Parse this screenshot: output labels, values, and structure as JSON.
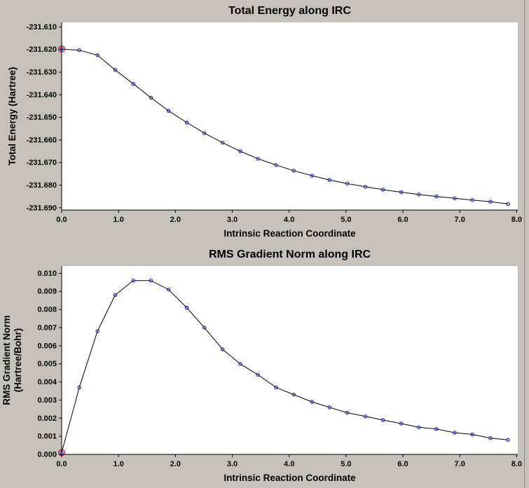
{
  "window": {
    "background": "#c6c2bb",
    "plot_background": "#ffffff"
  },
  "chart_data": [
    {
      "type": "line",
      "title": "Total Energy along IRC",
      "xlabel": "Intrinsic Reaction Coordinate",
      "ylabel_lines": [
        "Total Energy (Hartree)"
      ],
      "xlim": [
        0,
        8.02
      ],
      "ylim": [
        -231.691,
        -231.608
      ],
      "xticks": [
        0,
        1,
        2,
        3,
        4,
        5,
        6,
        7,
        8
      ],
      "xtick_labels": [
        "0.0",
        "1.0",
        "2.0",
        "3.0",
        "4.0",
        "5.0",
        "6.0",
        "7.0",
        "8.0"
      ],
      "yticks": [
        -231.61,
        -231.62,
        -231.63,
        -231.64,
        -231.65,
        -231.66,
        -231.67,
        -231.68,
        -231.69
      ],
      "ytick_labels": [
        "-231.610",
        "-231.620",
        "-231.630",
        "-231.640",
        "-231.650",
        "-231.660",
        "-231.670",
        "-231.680",
        "-231.690"
      ],
      "x": [
        0,
        0.31,
        0.63,
        0.94,
        1.26,
        1.57,
        1.88,
        2.2,
        2.51,
        2.83,
        3.14,
        3.45,
        3.77,
        4.08,
        4.4,
        4.71,
        5.02,
        5.34,
        5.65,
        5.97,
        6.28,
        6.59,
        6.91,
        7.22,
        7.54,
        7.85
      ],
      "y": [
        -231.6198,
        -231.6203,
        -231.6225,
        -231.629,
        -231.6352,
        -231.6413,
        -231.6471,
        -231.6523,
        -231.657,
        -231.6612,
        -231.665,
        -231.6683,
        -231.6711,
        -231.6736,
        -231.6758,
        -231.6777,
        -231.6793,
        -231.6807,
        -231.682,
        -231.6831,
        -231.6841,
        -231.685,
        -231.6858,
        -231.6866,
        -231.6873,
        -231.6883
      ],
      "line_color": "#000000",
      "marker_color": "#2222bb",
      "highlight_index": 0,
      "highlight_color": "#c02040",
      "grid": false,
      "legend": null
    },
    {
      "type": "line",
      "title": "RMS Gradient Norm along IRC",
      "xlabel": "Intrinsic Reaction Coordinate",
      "ylabel_lines": [
        "RMS Gradient Norm",
        "(Hartree/Bohr)"
      ],
      "xlim": [
        0,
        8.02
      ],
      "ylim": [
        0,
        0.0104
      ],
      "xticks": [
        0,
        1,
        2,
        3,
        4,
        5,
        6,
        7,
        8
      ],
      "xtick_labels": [
        "0.0",
        "1.0",
        "2.0",
        "3.0",
        "4.0",
        "5.0",
        "6.0",
        "7.0",
        "8.0"
      ],
      "yticks": [
        0.0,
        0.001,
        0.002,
        0.003,
        0.004,
        0.005,
        0.006,
        0.007,
        0.008,
        0.009,
        0.01
      ],
      "ytick_labels": [
        "0.000",
        "0.001",
        "0.002",
        "0.003",
        "0.004",
        "0.005",
        "0.006",
        "0.007",
        "0.008",
        "0.009",
        "0.010"
      ],
      "x": [
        0,
        0.31,
        0.63,
        0.94,
        1.26,
        1.57,
        1.88,
        2.2,
        2.51,
        2.83,
        3.14,
        3.45,
        3.77,
        4.08,
        4.4,
        4.71,
        5.02,
        5.34,
        5.65,
        5.97,
        6.28,
        6.59,
        6.91,
        7.22,
        7.54,
        7.85
      ],
      "y": [
        0.0001,
        0.0037,
        0.0068,
        0.0088,
        0.0096,
        0.0096,
        0.0091,
        0.0081,
        0.007,
        0.0058,
        0.005,
        0.0044,
        0.0037,
        0.0033,
        0.0029,
        0.0026,
        0.0023,
        0.0021,
        0.0019,
        0.0017,
        0.0015,
        0.0014,
        0.0012,
        0.0011,
        0.0009,
        0.0008
      ],
      "line_color": "#000000",
      "marker_color": "#2222bb",
      "highlight_index": 0,
      "highlight_color": "#c02040",
      "grid": false,
      "legend": null
    }
  ]
}
